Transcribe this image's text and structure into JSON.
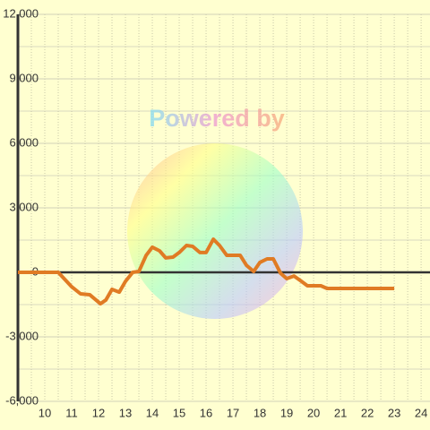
{
  "chart_data": {
    "type": "line",
    "watermark": "Powered by",
    "x": [
      9,
      10.5,
      11,
      11.33,
      11.67,
      12.07,
      12.27,
      12.5,
      12.77,
      13,
      13.27,
      13.5,
      13.77,
      14,
      14.27,
      14.5,
      14.77,
      15,
      15.27,
      15.5,
      15.77,
      16,
      16.27,
      16.5,
      16.77,
      17.27,
      17.5,
      17.77,
      18,
      18.27,
      18.5,
      18.77,
      19,
      19.27,
      19.5,
      19.77,
      20.27,
      20.5,
      23
    ],
    "series": [
      {
        "color": "#e07b24",
        "values": [
          0,
          0,
          -670,
          -1000,
          -1040,
          -1460,
          -1290,
          -790,
          -920,
          -420,
          0,
          40,
          790,
          1170,
          1000,
          670,
          710,
          920,
          1250,
          1210,
          920,
          920,
          1540,
          1250,
          790,
          790,
          330,
          40,
          460,
          625,
          625,
          -40,
          -290,
          -170,
          -375,
          -625,
          -625,
          -750,
          -750
        ]
      }
    ],
    "xlim": [
      9,
      24.33
    ],
    "xticks": [
      10,
      11,
      12,
      13,
      14,
      15,
      16,
      17,
      18,
      19,
      20,
      21,
      22,
      23,
      24
    ],
    "x_minor_ticks": [
      9.5,
      10.5,
      11.5,
      12.5,
      13.5,
      14.5,
      15.5,
      16.5,
      17.5,
      18.5,
      19.5,
      20.5,
      21.5,
      22.5,
      23.5
    ],
    "ylim": [
      -6000,
      12000
    ],
    "yticks": [
      {
        "value": -6000,
        "label": "-6,000"
      },
      {
        "value": -3000,
        "label": "-3,000"
      },
      0,
      {
        "value": 3000,
        "label": "3,000"
      },
      {
        "value": 6000,
        "label": "6,000"
      },
      {
        "value": 9000,
        "label": "9,000"
      },
      {
        "value": 12000,
        "label": "12,000"
      }
    ],
    "y_minor_ticks": [
      -4500,
      -1500,
      1500,
      4500,
      7500,
      10500
    ],
    "grid": true
  }
}
